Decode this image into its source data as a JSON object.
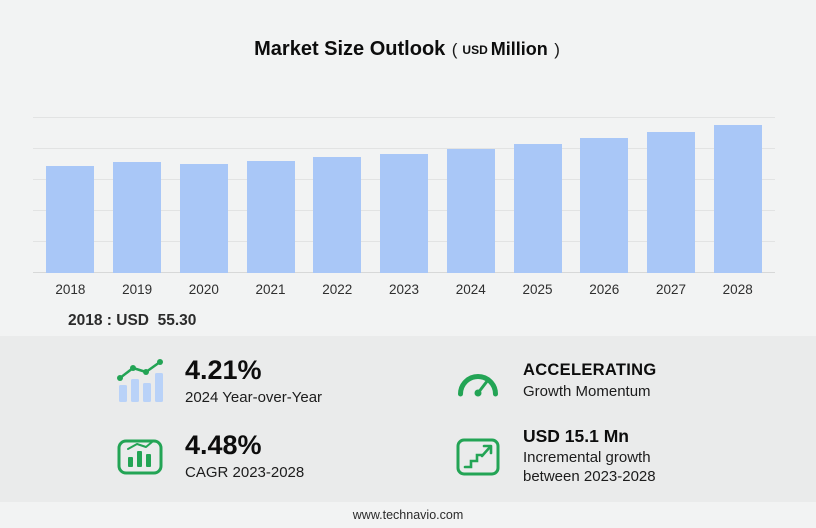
{
  "header": {
    "title": "Market Size Outlook",
    "paren_open": "(",
    "unit_currency": "USD",
    "unit_scale": "Million",
    "paren_close": ")"
  },
  "chart_data": {
    "type": "bar",
    "title": "Market Size Outlook (USD Million)",
    "unit": "USD Million",
    "categories": [
      "2018",
      "2019",
      "2020",
      "2021",
      "2022",
      "2023",
      "2024",
      "2025",
      "2026",
      "2027",
      "2028"
    ],
    "values": [
      55.3,
      56.9,
      56.3,
      57.6,
      59.5,
      61.0,
      63.6,
      66.4,
      69.4,
      72.5,
      76.1
    ],
    "ylim": [
      0,
      80
    ],
    "grid": true,
    "legend": false,
    "bar_color": "#a9c7f7",
    "gridline_color": "#e2e3e3",
    "annotations": [
      "2018 : USD  55.30"
    ]
  },
  "annotation": {
    "text": "2018 : USD  55.30"
  },
  "stats": {
    "accent_color": "#23a455",
    "items": [
      {
        "icon": "yoy-trend-icon",
        "value": "4.21%",
        "lines": [
          "2024 Year-over-Year"
        ]
      },
      {
        "icon": "speedometer-icon",
        "value": "ACCELERATING",
        "lines": [
          "Growth Momentum"
        ]
      },
      {
        "icon": "cagr-chart-icon",
        "value": "4.48%",
        "lines": [
          "CAGR 2023-2028"
        ]
      },
      {
        "icon": "incremental-growth-icon",
        "value": "USD 15.1 Mn",
        "lines": [
          "Incremental growth",
          "between 2023-2028"
        ]
      }
    ]
  },
  "footer": {
    "url": "www.technavio.com"
  }
}
